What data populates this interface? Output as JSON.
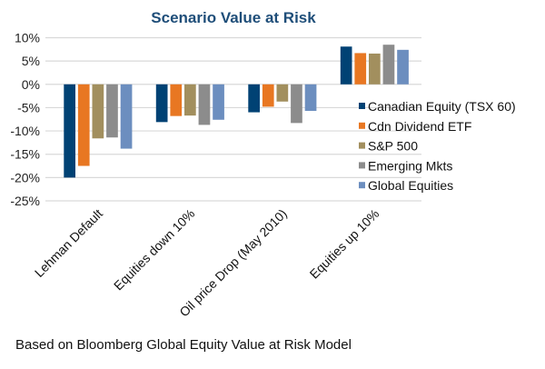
{
  "chart_data": {
    "type": "bar",
    "title": "Scenario Value at Risk",
    "xlabel": "",
    "ylabel": "",
    "ylim": [
      -25,
      10
    ],
    "yticks": [
      10,
      5,
      0,
      -5,
      -10,
      -15,
      -20,
      -25
    ],
    "ytick_format": "percent",
    "grid": true,
    "legend_position": "right",
    "categories": [
      "Lehman Default",
      "Equities down 10%",
      "Oil price Drop (May 2010)",
      "Equities up 10%"
    ],
    "series": [
      {
        "name": "Canadian Equity (TSX 60)",
        "color": "#004274",
        "values": [
          -20.0,
          -8.1,
          -6.0,
          8.1
        ]
      },
      {
        "name": "Cdn Dividend ETF",
        "color": "#E87722",
        "values": [
          -17.5,
          -6.8,
          -4.8,
          6.7
        ]
      },
      {
        "name": "S&P 500",
        "color": "#A28F5E",
        "values": [
          -11.6,
          -6.7,
          -3.7,
          6.6
        ]
      },
      {
        "name": "Emerging Mkts",
        "color": "#8C8C8C",
        "values": [
          -11.4,
          -8.7,
          -8.3,
          8.5
        ]
      },
      {
        "name": "Global Equities",
        "color": "#6C8EBF",
        "values": [
          -13.8,
          -7.6,
          -5.7,
          7.4
        ]
      }
    ]
  },
  "footnote": "Based on Bloomberg Global Equity Value at Risk Model"
}
